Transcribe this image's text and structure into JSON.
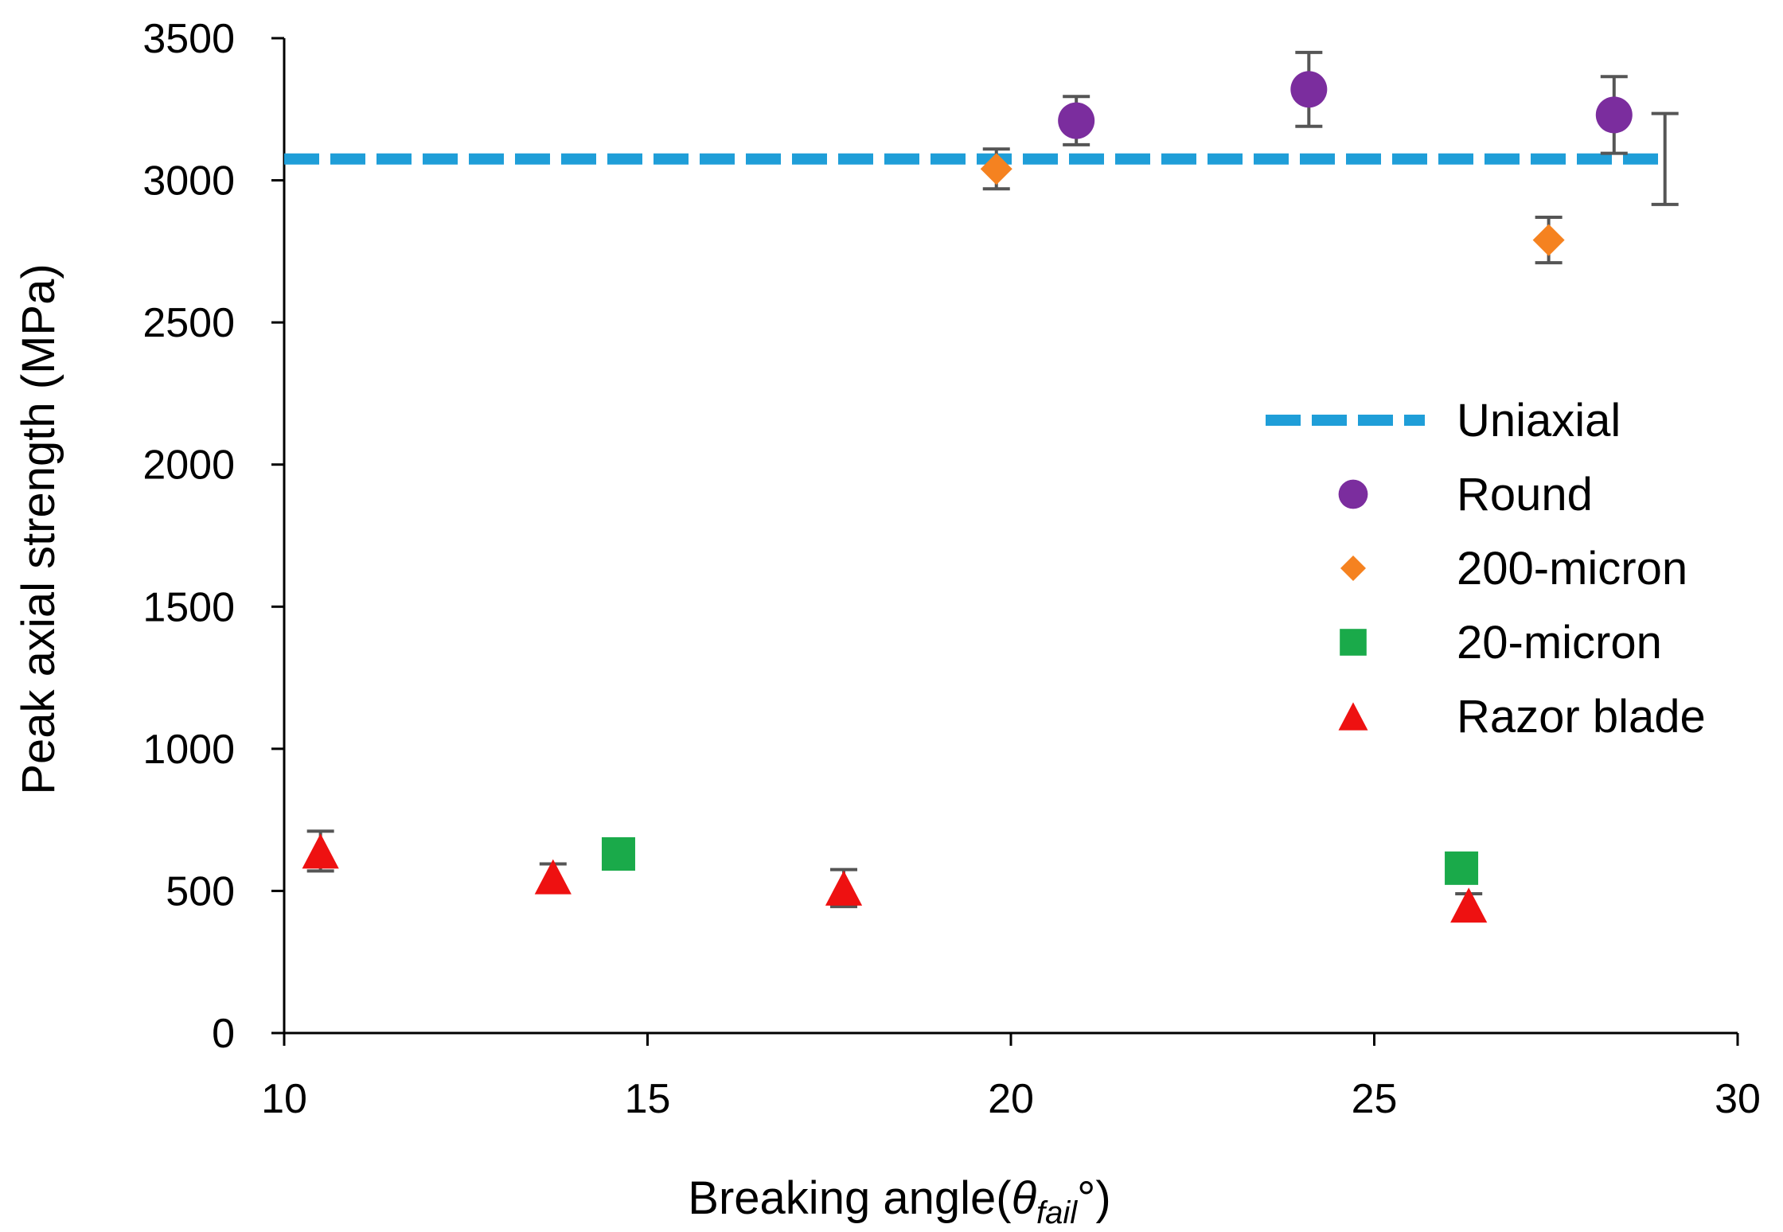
{
  "chart_data": {
    "type": "scatter",
    "title": "",
    "xlabel_main": "Breaking angle(",
    "xlabel_symbol": "θ",
    "xlabel_sub": "fail",
    "xlabel_tail": "°)",
    "ylabel": "Peak axial strength (MPa)",
    "xlim": [
      10,
      30
    ],
    "ylim": [
      0,
      3500
    ],
    "x_ticks": [
      10,
      15,
      20,
      25,
      30
    ],
    "y_ticks": [
      0,
      500,
      1000,
      1500,
      2000,
      2500,
      3000,
      3500
    ],
    "grid": false,
    "legend_position": "right",
    "reference_line": {
      "name": "Uniaxial",
      "y": 3075,
      "x_start": 10,
      "x_end": 29,
      "color": "#1f9ed8",
      "err_x": 29,
      "err": 160
    },
    "series": [
      {
        "name": "Round",
        "marker": "circle",
        "color": "#7b2d9e",
        "points": [
          {
            "x": 20.9,
            "y": 3210,
            "err": 85
          },
          {
            "x": 24.1,
            "y": 3320,
            "err": 130
          },
          {
            "x": 28.3,
            "y": 3230,
            "err": 135
          }
        ]
      },
      {
        "name": "200-micron",
        "marker": "diamond",
        "color": "#f58220",
        "points": [
          {
            "x": 19.8,
            "y": 3040,
            "err": 70
          },
          {
            "x": 27.4,
            "y": 2790,
            "err": 80
          }
        ]
      },
      {
        "name": "20-micron",
        "marker": "square",
        "color": "#1aaa4a",
        "points": [
          {
            "x": 14.6,
            "y": 630,
            "err": 0
          },
          {
            "x": 26.2,
            "y": 580,
            "err": 0
          }
        ]
      },
      {
        "name": "Razor blade",
        "marker": "triangle",
        "color": "#ee1111",
        "points": [
          {
            "x": 10.5,
            "y": 640,
            "err": 70
          },
          {
            "x": 13.7,
            "y": 550,
            "err": 45
          },
          {
            "x": 17.7,
            "y": 510,
            "err": 65
          },
          {
            "x": 26.3,
            "y": 450,
            "err": 40
          }
        ]
      }
    ],
    "error_bar_color": "#555555"
  }
}
